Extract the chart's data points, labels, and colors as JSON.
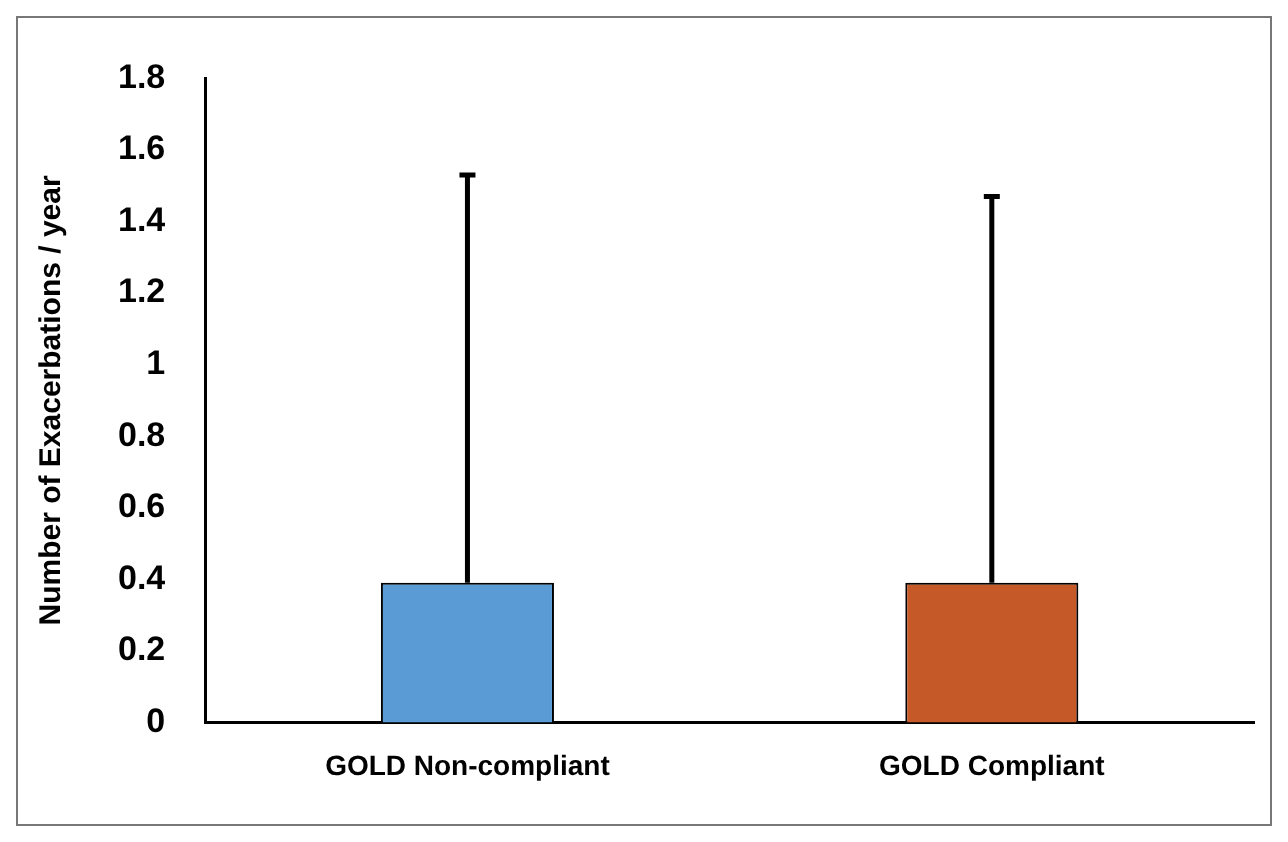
{
  "chart_data": {
    "type": "bar",
    "ylabel": "Number of Exacerbations / year",
    "categories": [
      "GOLD Non-compliant",
      "GOLD Compliant"
    ],
    "values": [
      0.39,
      0.39
    ],
    "colors": [
      "#5b9bd5",
      "#c55a28"
    ],
    "errors": [
      [
        0.39,
        1.53
      ],
      [
        0.39,
        1.47
      ]
    ],
    "ylim": [
      0,
      1.8
    ],
    "yticks": [
      0,
      0.2,
      0.4,
      0.6,
      0.8,
      1,
      1.2,
      1.4,
      1.6,
      1.8
    ],
    "grid": false,
    "legend": false
  }
}
